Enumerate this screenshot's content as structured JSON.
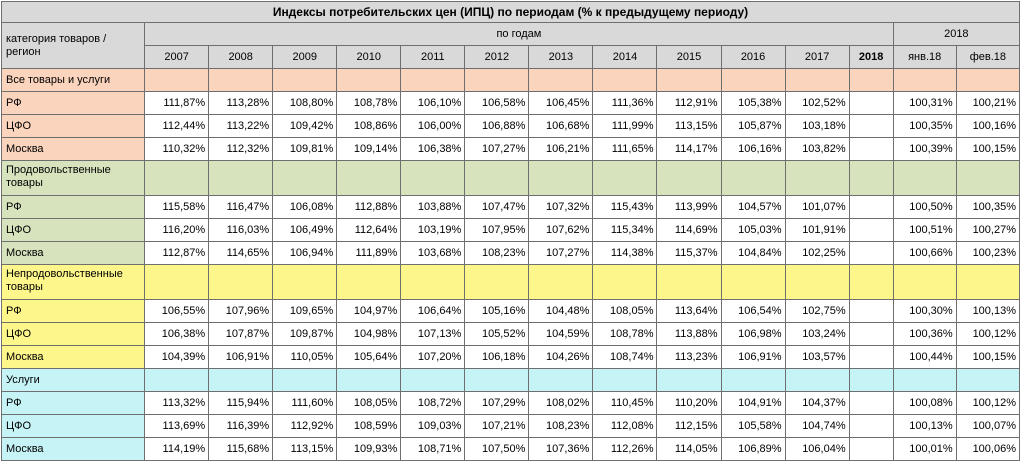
{
  "title": "Индексы потребительских цен (ИПЦ) по периодам (% к предыдущему периоду)",
  "header": {
    "category_label": "категория товаров / регион",
    "by_years_label": "по годам",
    "months_group_label": "2018",
    "years": [
      "2007",
      "2008",
      "2009",
      "2010",
      "2011",
      "2012",
      "2013",
      "2014",
      "2015",
      "2016",
      "2017",
      "2018"
    ],
    "months": [
      "янв.18",
      "фев.18"
    ]
  },
  "colors": {
    "header_gray": "#d9d9d9",
    "all_goods": "#fbd4bd",
    "food": "#d6e3bc",
    "nonfood": "#fdf68b",
    "services": "#c6f3f5"
  },
  "groups": [
    {
      "label": "Все товары и услуги",
      "color": "all",
      "rows": [
        {
          "region": "РФ",
          "years": [
            "111,87%",
            "113,28%",
            "108,80%",
            "108,78%",
            "106,10%",
            "106,58%",
            "106,45%",
            "111,36%",
            "112,91%",
            "105,38%",
            "102,52%",
            ""
          ],
          "months": [
            "100,31%",
            "100,21%"
          ]
        },
        {
          "region": "ЦФО",
          "years": [
            "112,44%",
            "113,22%",
            "109,42%",
            "108,86%",
            "106,00%",
            "106,88%",
            "106,68%",
            "111,99%",
            "113,15%",
            "105,87%",
            "103,18%",
            ""
          ],
          "months": [
            "100,35%",
            "100,16%"
          ]
        },
        {
          "region": "Москва",
          "years": [
            "110,32%",
            "112,32%",
            "109,81%",
            "109,14%",
            "106,38%",
            "107,27%",
            "106,21%",
            "111,65%",
            "114,17%",
            "106,16%",
            "103,82%",
            ""
          ],
          "months": [
            "100,39%",
            "100,15%"
          ]
        }
      ]
    },
    {
      "label": "Продовольственные товары",
      "color": "food",
      "rows": [
        {
          "region": "РФ",
          "years": [
            "115,58%",
            "116,47%",
            "106,08%",
            "112,88%",
            "103,88%",
            "107,47%",
            "107,32%",
            "115,43%",
            "113,99%",
            "104,57%",
            "101,07%",
            ""
          ],
          "months": [
            "100,50%",
            "100,35%"
          ]
        },
        {
          "region": "ЦФО",
          "years": [
            "116,20%",
            "116,03%",
            "106,49%",
            "112,64%",
            "103,19%",
            "107,95%",
            "107,62%",
            "115,34%",
            "114,69%",
            "105,03%",
            "101,91%",
            ""
          ],
          "months": [
            "100,51%",
            "100,27%"
          ]
        },
        {
          "region": "Москва",
          "years": [
            "112,87%",
            "114,65%",
            "106,94%",
            "111,89%",
            "103,68%",
            "108,23%",
            "107,27%",
            "114,38%",
            "115,37%",
            "104,84%",
            "102,25%",
            ""
          ],
          "months": [
            "100,66%",
            "100,23%"
          ]
        }
      ]
    },
    {
      "label": "Непродовольственные товары",
      "color": "nonfood",
      "rows": [
        {
          "region": "РФ",
          "years": [
            "106,55%",
            "107,96%",
            "109,65%",
            "104,97%",
            "106,64%",
            "105,16%",
            "104,48%",
            "108,05%",
            "113,64%",
            "106,54%",
            "102,75%",
            ""
          ],
          "months": [
            "100,30%",
            "100,13%"
          ]
        },
        {
          "region": "ЦФО",
          "years": [
            "106,38%",
            "107,87%",
            "109,87%",
            "104,98%",
            "107,13%",
            "105,52%",
            "104,59%",
            "108,78%",
            "113,88%",
            "106,98%",
            "103,24%",
            ""
          ],
          "months": [
            "100,36%",
            "100,12%"
          ]
        },
        {
          "region": "Москва",
          "years": [
            "104,39%",
            "106,91%",
            "110,05%",
            "105,64%",
            "107,20%",
            "106,18%",
            "104,26%",
            "108,74%",
            "113,23%",
            "106,91%",
            "103,57%",
            ""
          ],
          "months": [
            "100,44%",
            "100,15%"
          ]
        }
      ]
    },
    {
      "label": "Услуги",
      "color": "serv",
      "rows": [
        {
          "region": "РФ",
          "years": [
            "113,32%",
            "115,94%",
            "111,60%",
            "108,05%",
            "108,72%",
            "107,29%",
            "108,02%",
            "110,45%",
            "110,20%",
            "104,91%",
            "104,37%",
            ""
          ],
          "months": [
            "100,08%",
            "100,12%"
          ]
        },
        {
          "region": "ЦФО",
          "years": [
            "113,69%",
            "116,39%",
            "112,92%",
            "108,59%",
            "109,03%",
            "107,21%",
            "108,23%",
            "112,08%",
            "112,15%",
            "105,58%",
            "104,74%",
            ""
          ],
          "months": [
            "100,13%",
            "100,07%"
          ]
        },
        {
          "region": "Москва",
          "years": [
            "114,19%",
            "115,68%",
            "113,15%",
            "109,93%",
            "108,71%",
            "107,50%",
            "107,36%",
            "112,26%",
            "114,05%",
            "106,89%",
            "106,04%",
            ""
          ],
          "months": [
            "100,01%",
            "100,06%"
          ]
        }
      ]
    }
  ]
}
